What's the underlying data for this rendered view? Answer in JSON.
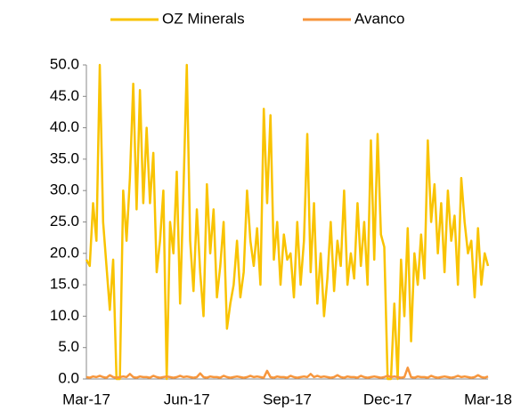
{
  "chart_data": {
    "type": "line",
    "categories": [
      "Mar-17",
      null,
      null,
      null,
      null,
      null,
      null,
      null,
      null,
      null,
      null,
      null,
      null,
      null,
      null,
      null,
      null,
      null,
      null,
      null,
      null,
      null,
      null,
      null,
      null,
      null,
      null,
      null,
      null,
      null,
      "Jun-17",
      null,
      null,
      null,
      null,
      null,
      null,
      null,
      null,
      null,
      null,
      null,
      null,
      null,
      null,
      null,
      null,
      null,
      null,
      null,
      null,
      null,
      null,
      null,
      null,
      null,
      null,
      null,
      null,
      null,
      "Sep-17",
      null,
      null,
      null,
      null,
      null,
      null,
      null,
      null,
      null,
      null,
      null,
      null,
      null,
      null,
      null,
      null,
      null,
      null,
      null,
      null,
      null,
      null,
      null,
      null,
      null,
      null,
      null,
      null,
      null,
      "Dec-17",
      null,
      null,
      null,
      null,
      null,
      null,
      null,
      null,
      null,
      null,
      null,
      null,
      null,
      null,
      null,
      null,
      null,
      null,
      null,
      null,
      null,
      null,
      null,
      null,
      null,
      null,
      null,
      null,
      null,
      "Mar-18"
    ],
    "series": [
      {
        "name": "OZ Minerals",
        "color": "#f9c300",
        "values": [
          19,
          18,
          28,
          22,
          50,
          25,
          18,
          11,
          19,
          0,
          0,
          30,
          22,
          32,
          47,
          27,
          46,
          28,
          40,
          28,
          36,
          17,
          22,
          30,
          0,
          25,
          20,
          33,
          12,
          30,
          50,
          22,
          14,
          27,
          17,
          10,
          31,
          20,
          27,
          13,
          18,
          25,
          8,
          12,
          15,
          22,
          13,
          17,
          30,
          22,
          18,
          24,
          15,
          43,
          28,
          42,
          19,
          25,
          15,
          23,
          19,
          20,
          13,
          25,
          15,
          22,
          39,
          17,
          28,
          12,
          20,
          10,
          16,
          25,
          14,
          22,
          18,
          30,
          15,
          20,
          16,
          28,
          18,
          25,
          15,
          38,
          19,
          39,
          23,
          21,
          0,
          0,
          12,
          0,
          19,
          10,
          24,
          6,
          20,
          15,
          23,
          16,
          38,
          25,
          31,
          20,
          28,
          17,
          30,
          22,
          26,
          15,
          32,
          25,
          20,
          22,
          13,
          24,
          15,
          20,
          18
        ]
      },
      {
        "name": "Avanco",
        "color": "#f7963c",
        "values": [
          0.3,
          0.2,
          0.4,
          0.3,
          0.5,
          0.3,
          0.2,
          0.6,
          0.3,
          0.2,
          0.3,
          0.4,
          0.3,
          0.8,
          0.3,
          0.2,
          0.4,
          0.3,
          0.3,
          0.2,
          0.5,
          0.3,
          0.2,
          0.3,
          0.4,
          0.3,
          0.2,
          0.3,
          0.5,
          0.3,
          0.4,
          0.3,
          0.2,
          0.3,
          0.9,
          0.3,
          0.2,
          0.4,
          0.3,
          0.3,
          0.2,
          0.5,
          0.3,
          0.2,
          0.3,
          0.4,
          0.3,
          0.2,
          0.3,
          0.5,
          0.3,
          0.4,
          0.3,
          0.2,
          1.3,
          0.3,
          0.2,
          0.4,
          0.3,
          0.3,
          0.2,
          0.5,
          0.3,
          0.2,
          0.3,
          0.4,
          0.3,
          0.8,
          0.3,
          0.5,
          0.3,
          0.4,
          0.3,
          0.2,
          0.3,
          0.6,
          0.3,
          0.2,
          0.4,
          0.3,
          0.3,
          0.2,
          0.5,
          0.3,
          0.2,
          0.3,
          0.4,
          0.3,
          0.2,
          0.3,
          0.5,
          0.3,
          0.4,
          0.3,
          0.2,
          0.3,
          1.8,
          0.3,
          0.2,
          0.4,
          0.3,
          0.3,
          0.2,
          0.5,
          0.3,
          0.2,
          0.3,
          0.4,
          0.3,
          0.2,
          0.3,
          0.5,
          0.3,
          0.4,
          0.3,
          0.2,
          0.3,
          0.6,
          0.3,
          0.2,
          0.4
        ]
      }
    ],
    "ylim": [
      0,
      50
    ],
    "yticks": [
      {
        "value": 0,
        "label": "0.0"
      },
      {
        "value": 5,
        "label": "5.0"
      },
      {
        "value": 10,
        "label": "10.0"
      },
      {
        "value": 15,
        "label": "15.0"
      },
      {
        "value": 20,
        "label": "20.0"
      },
      {
        "value": 25,
        "label": "25.0"
      },
      {
        "value": 30,
        "label": "30.0"
      },
      {
        "value": 35,
        "label": "35.0"
      },
      {
        "value": 40,
        "label": "40.0"
      },
      {
        "value": 45,
        "label": "45.0"
      },
      {
        "value": 50,
        "label": "50.0"
      }
    ],
    "grid": false,
    "legend": "top"
  }
}
